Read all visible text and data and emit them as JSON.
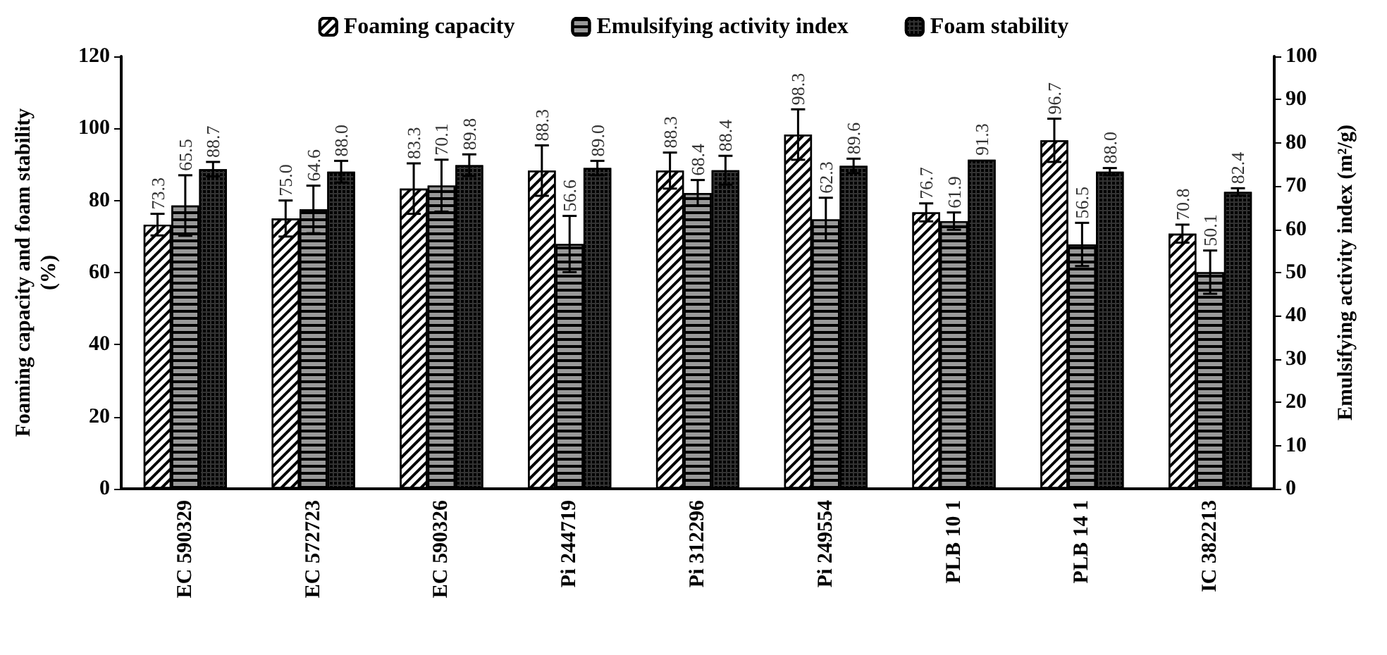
{
  "chart_data": {
    "type": "bar",
    "ylabel": "Foaming capacity and foam stability (%)",
    "y2label": "Emulsifying activity index (m²/g)",
    "categories": [
      "EC 590329",
      "EC 572723",
      "EC 590326",
      "Pi 244719",
      "Pi 312296",
      "Pi 249554",
      "PLB 10 1",
      "PLB 14 1",
      "IC 382213"
    ],
    "series": [
      {
        "name": "Foaming capacity",
        "color": "#ffffff",
        "values": [
          73.3,
          75.0,
          83.3,
          88.3,
          88.3,
          98.3,
          76.7,
          96.7,
          70.8
        ],
        "errors": [
          3,
          5,
          7,
          7,
          5,
          7,
          2.5,
          6,
          2.5
        ],
        "value_labels": [
          "73.3",
          "75.0",
          "83.3",
          "88.3",
          "88.3",
          "98.3",
          "76.7",
          "96.7",
          "70.8"
        ]
      },
      {
        "name": "Emulsifying activity index",
        "color": "#999999",
        "axis": "y2",
        "values": [
          65.5,
          64.6,
          70.1,
          56.6,
          68.4,
          62.3,
          61.9,
          56.5,
          50.1
        ],
        "errors": [
          7,
          5.5,
          6,
          6.5,
          3,
          5,
          2,
          5,
          5
        ],
        "value_labels": [
          "65.5",
          "64.6",
          "70.1",
          "56.6",
          "68.4",
          "62.3",
          "61.9",
          "56.5",
          "50.1"
        ]
      },
      {
        "name": "Foam stability",
        "color": "#333333",
        "values": [
          88.7,
          88.0,
          89.8,
          89.0,
          88.4,
          89.6,
          91.3,
          88.0,
          82.4
        ],
        "errors": [
          2,
          3,
          3,
          2,
          4,
          2,
          null,
          1,
          1
        ],
        "value_labels": [
          "88.7",
          "88.0",
          "89.8",
          "89.0",
          "88.4",
          "89.6",
          "91.3",
          "88.0",
          "82.4"
        ]
      }
    ],
    "ylim": [
      0,
      120
    ],
    "yticks": [
      0,
      20,
      40,
      60,
      80,
      100,
      120
    ],
    "y2lim": [
      0,
      100
    ],
    "y2ticks": [
      0,
      10,
      20,
      30,
      40,
      50,
      60,
      70,
      80,
      90,
      100
    ],
    "legend": "top",
    "grid": false
  }
}
